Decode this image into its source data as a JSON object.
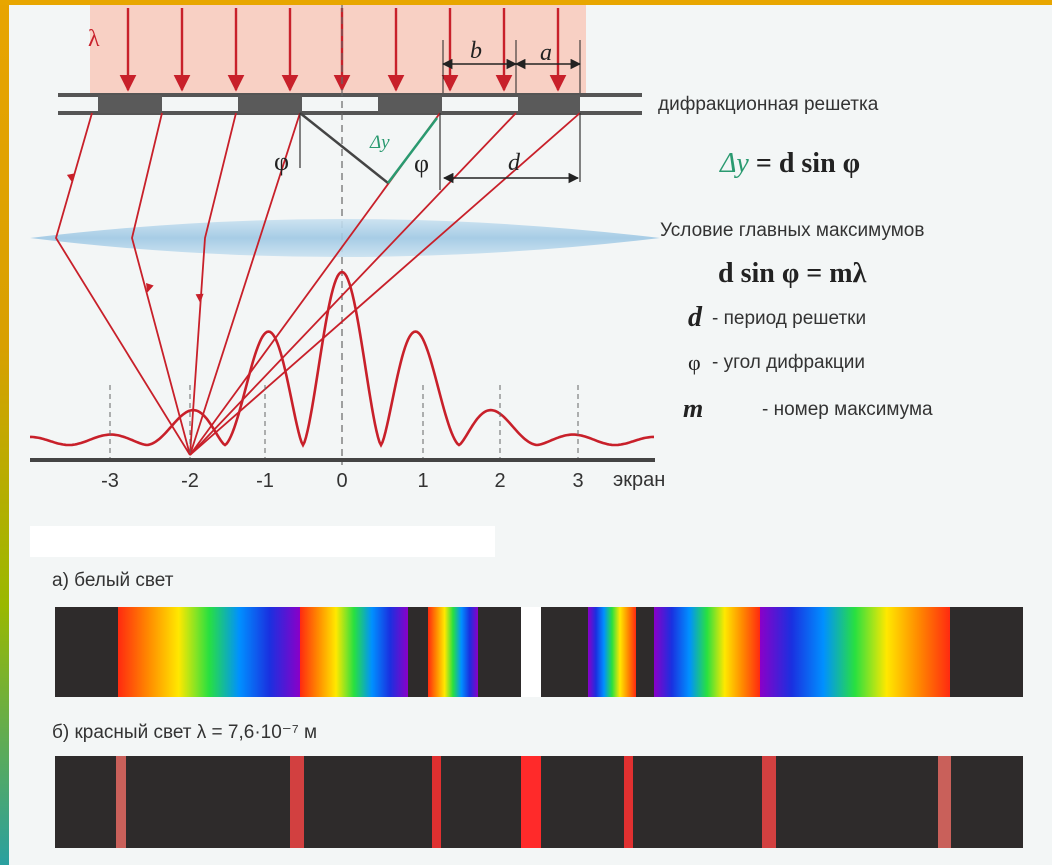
{
  "top_diagram": {
    "lambda_label": "λ",
    "b_label": "b",
    "a_label": "a",
    "grating_label": "дифракционная решетка",
    "phi_label": "φ",
    "delta_y_label": "Δy",
    "d_label": "d",
    "formula_path_diff": {
      "lhs": "Δy",
      "rhs": " = d sin φ"
    },
    "condition_title": "Условие главных максимумов",
    "formula_condition": "d sin φ = mλ",
    "legend": [
      {
        "symbol": "d",
        "text": "- период решетки"
      },
      {
        "symbol": "φ",
        "text": "- угол дифракции"
      },
      {
        "symbol": "m",
        "text": "- номер максимума"
      }
    ],
    "screen_label": "экран",
    "orders": [
      "-3",
      "-2",
      "-1",
      "0",
      "1",
      "2",
      "3"
    ]
  },
  "spectra": {
    "white_label": "а) белый свет",
    "red_label": "б) красный свет  λ = 7,6·10⁻⁷ м"
  },
  "colors": {
    "ray": "#c8202a",
    "incident_fill": "#f8d0c4",
    "lens": "#a8cfe8",
    "delta_green": "#2a9a70",
    "grating_bar": "#5a5a5a",
    "spectrum_bg": "#2e2b2b",
    "border": "#e9a800"
  }
}
